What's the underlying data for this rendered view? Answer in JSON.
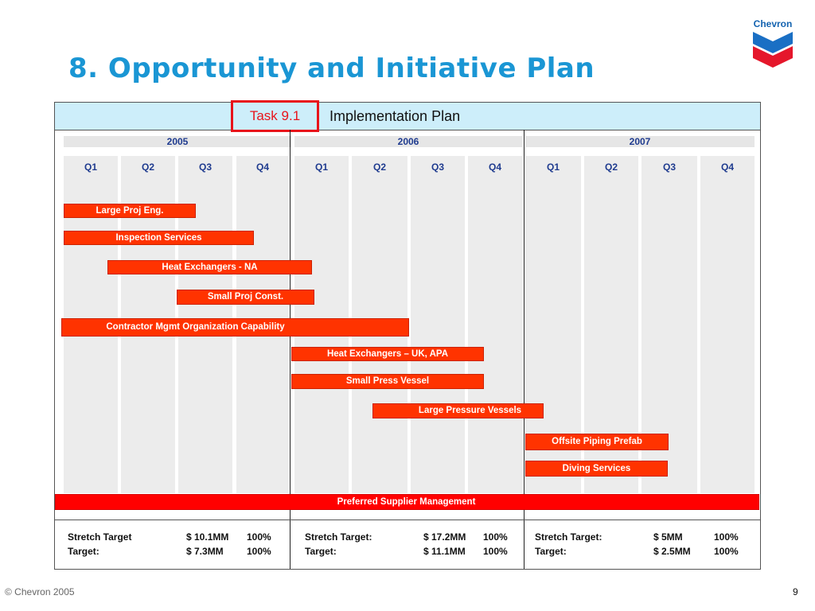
{
  "slide": {
    "title": "8. Opportunity and Initiative Plan",
    "brand": "Chevron",
    "task_label": "Task 9.1",
    "plan_label": "Implementation Plan",
    "footer_copyright": "© Chevron 2005",
    "page_number": "9"
  },
  "colors": {
    "title_blue": "#1a96d4",
    "header_band": "#cdeefa",
    "task_red": "#e8141b",
    "bar_orange_red": "#ff3300",
    "bar_red": "#ff0000",
    "quarter_text": "#1f3b8f",
    "column_grey": "#ececec"
  },
  "years": [
    "2005",
    "2006",
    "2007"
  ],
  "quarters": [
    "Q1",
    "Q2",
    "Q3",
    "Q4"
  ],
  "initiatives": [
    {
      "label": "Large Proj Eng."
    },
    {
      "label": "Inspection Services"
    },
    {
      "label": "Heat Exchangers - NA"
    },
    {
      "label": "Small  Proj Const."
    },
    {
      "label": "Contractor Mgmt Organization Capability"
    },
    {
      "label": "Heat Exchangers – UK, APA"
    },
    {
      "label": "Small Press Vessel"
    },
    {
      "label": "Large Pressure Vessels"
    },
    {
      "label": "Offsite Piping Prefab"
    },
    {
      "label": "Diving Services"
    },
    {
      "label": "Preferred Supplier Management"
    }
  ],
  "targets": [
    {
      "stretch_label": "Stretch Target",
      "stretch_value": "$ 10.1MM",
      "stretch_pct": "100%",
      "target_label": "Target:",
      "target_value": "$ 7.3MM",
      "target_pct": "100%"
    },
    {
      "stretch_label": "Stretch Target:",
      "stretch_value": "$ 17.2MM",
      "stretch_pct": "100%",
      "target_label": "Target:",
      "target_value": "$ 11.1MM",
      "target_pct": "100%"
    },
    {
      "stretch_label": "Stretch Target:",
      "stretch_value": "$ 5MM",
      "stretch_pct": "100%",
      "target_label": "Target:",
      "target_value": "$ 2.5MM",
      "target_pct": "100%"
    }
  ]
}
